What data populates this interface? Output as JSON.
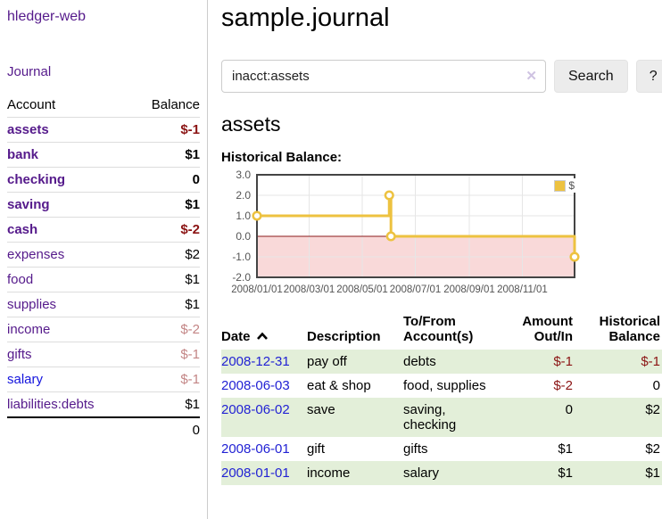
{
  "app": {
    "title": "hledger-web"
  },
  "sidebar": {
    "journal_link": "Journal",
    "account_header": "Account",
    "balance_header": "Balance",
    "rows": [
      {
        "account": "assets",
        "balance": "$-1"
      },
      {
        "account": "bank",
        "balance": "$1"
      },
      {
        "account": "checking",
        "balance": "0"
      },
      {
        "account": "saving",
        "balance": "$1"
      },
      {
        "account": "cash",
        "balance": "$-2"
      },
      {
        "account": "expenses",
        "balance": "$2"
      },
      {
        "account": "food",
        "balance": "$1"
      },
      {
        "account": "supplies",
        "balance": "$1"
      },
      {
        "account": "income",
        "balance": "$-2"
      },
      {
        "account": "gifts",
        "balance": "$-1"
      },
      {
        "account": "salary",
        "balance": "$-1"
      },
      {
        "account": "liabilities:debts",
        "balance": "$1"
      }
    ],
    "total": "0"
  },
  "main": {
    "title": "sample.journal",
    "search": {
      "value": "inacct:assets",
      "clear_icon": "✕",
      "button_label": "Search",
      "help_label": "?"
    },
    "account_heading": "assets",
    "chart_label": "Historical Balance:"
  },
  "chart_data": {
    "type": "line",
    "title": "Historical Balance",
    "step": true,
    "series": [
      {
        "name": "$",
        "color": "#edc240",
        "points": [
          {
            "date": "2008-01-01",
            "value": 1
          },
          {
            "date": "2008-06-01",
            "value": 2
          },
          {
            "date": "2008-06-03",
            "value": 0
          },
          {
            "date": "2008-12-31",
            "value": -1
          }
        ]
      }
    ],
    "x_range": [
      "2008-01-01",
      "2008-12-31"
    ],
    "ylim": [
      -2,
      3
    ],
    "y_ticks": [
      "3.0",
      "2.0",
      "1.0",
      "0.0",
      "-1.0",
      "-2.0"
    ],
    "x_ticks": [
      "2008/01/01",
      "2008/03/01",
      "2008/05/01",
      "2008/07/01",
      "2008/09/01",
      "2008/11/01"
    ],
    "grid": true,
    "legend_position": "top-right",
    "colors": {
      "negative_region": "#f9d9d9",
      "zero_line": "#8b1a1a",
      "gridline": "#e6e6e6",
      "border": "#444444",
      "tick_text": "#545454"
    }
  },
  "transactions": {
    "headers": {
      "date": "Date",
      "description": "Description",
      "accounts": "To/From Account(s)",
      "amount": "Amount Out/In",
      "balance": "Historical Balance"
    },
    "rows": [
      {
        "date": "2008-12-31",
        "description": "pay off",
        "accounts": "debts",
        "amount": "$-1",
        "balance": "$-1"
      },
      {
        "date": "2008-06-03",
        "description": "eat & shop",
        "accounts": "food, supplies",
        "amount": "$-2",
        "balance": "0"
      },
      {
        "date": "2008-06-02",
        "description": "save",
        "accounts": "saving, checking",
        "amount": "0",
        "balance": "$2"
      },
      {
        "date": "2008-06-01",
        "description": "gift",
        "accounts": "gifts",
        "amount": "$1",
        "balance": "$2"
      },
      {
        "date": "2008-01-01",
        "description": "income",
        "accounts": "salary",
        "amount": "$1",
        "balance": "$1"
      }
    ]
  },
  "colors": {
    "link_purple": "#551a8b",
    "link_blue": "#1414dd",
    "negative_strong": "#8b1414",
    "negative_muted": "#c38585",
    "row_green": "#e3efd9"
  }
}
